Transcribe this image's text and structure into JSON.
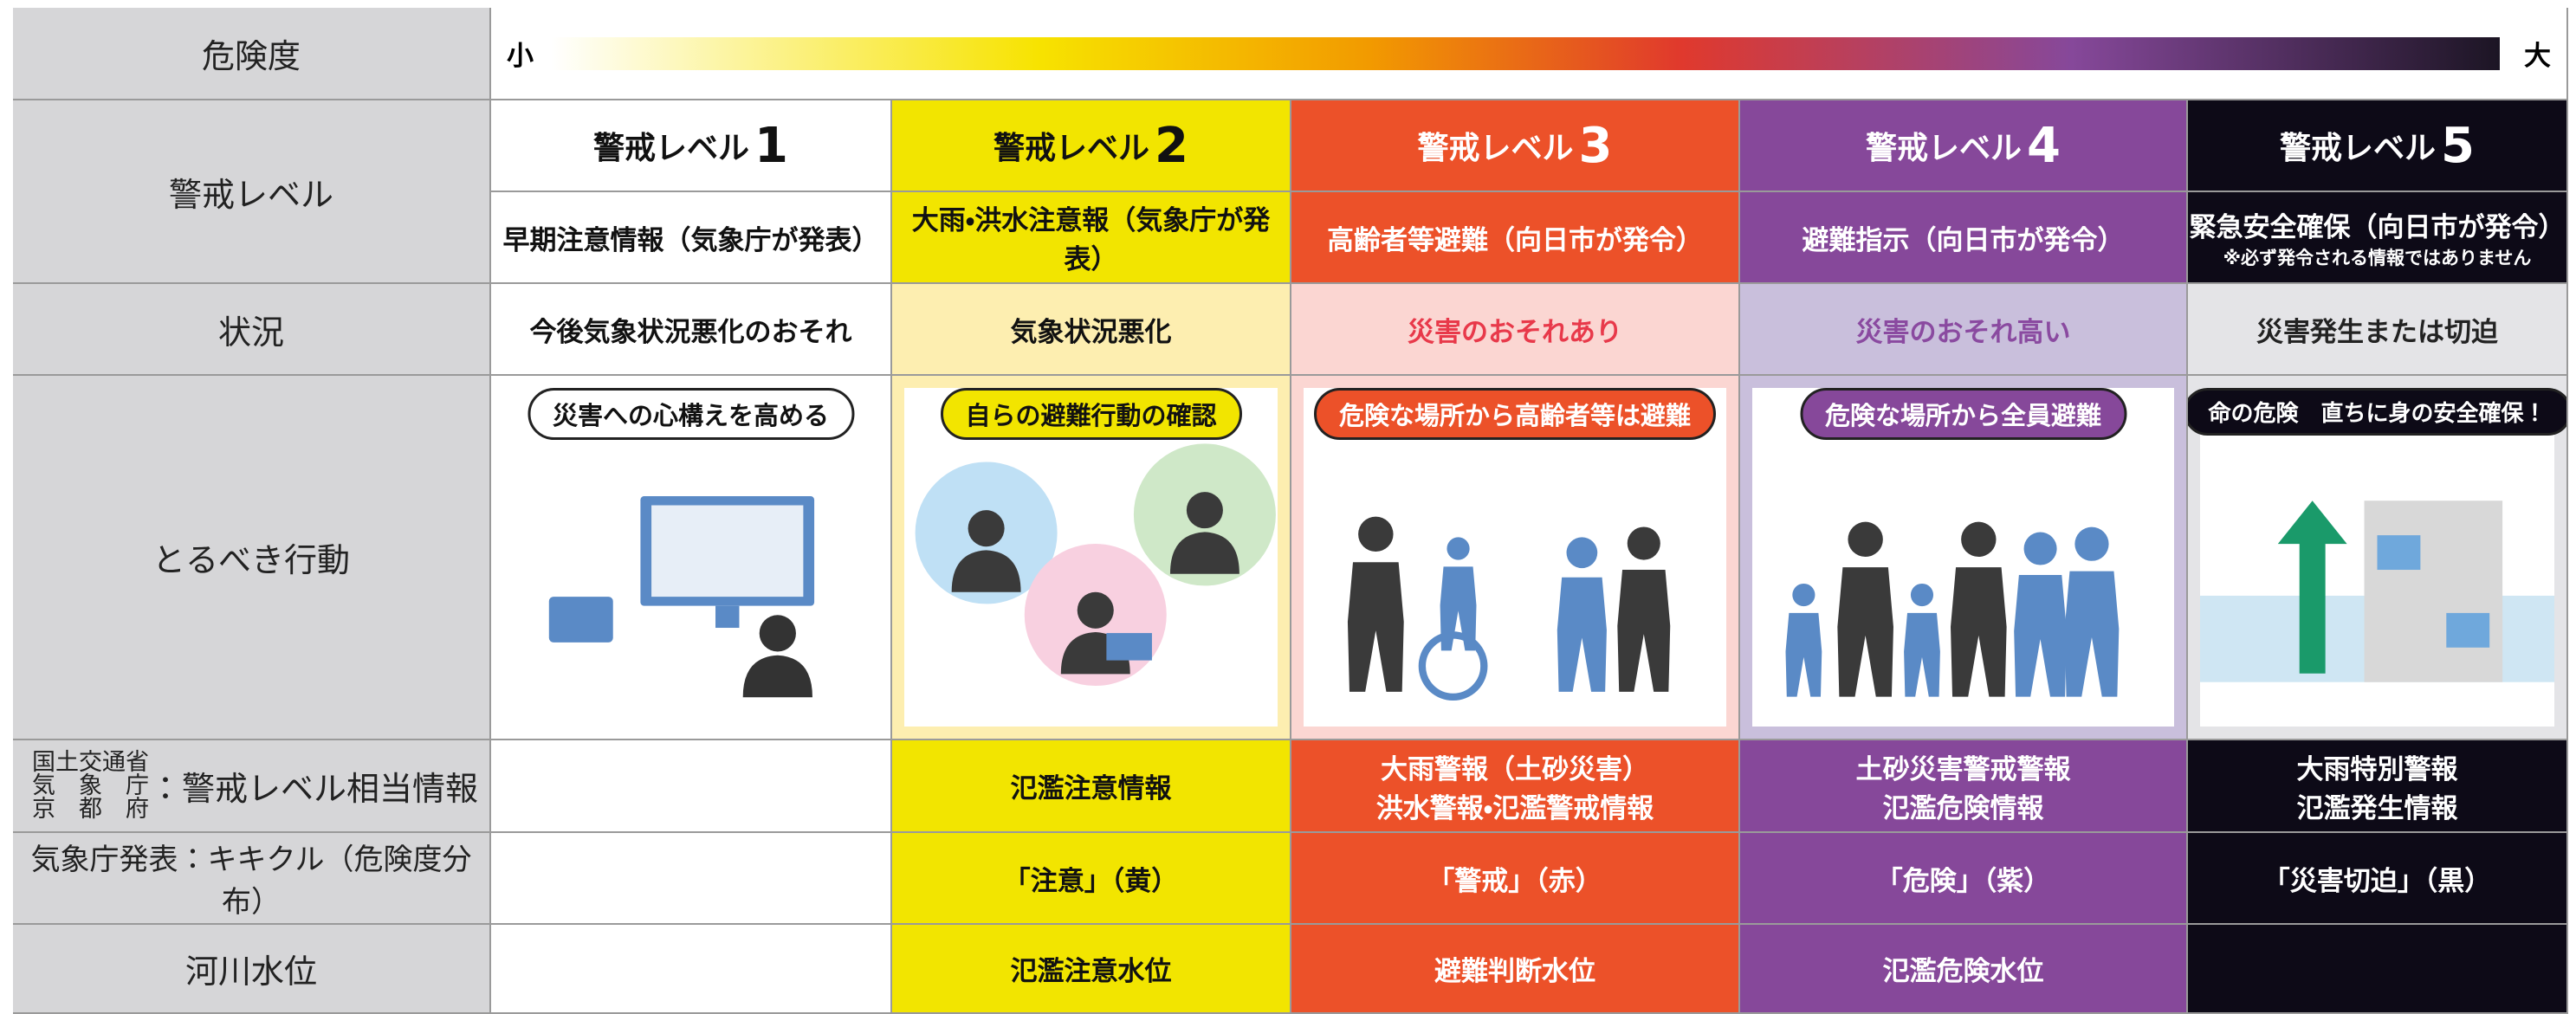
{
  "danger": {
    "label": "危険度",
    "low": "小",
    "high": "大"
  },
  "row_labels": {
    "level": "警戒レベル",
    "status": "状況",
    "action": "とるべき行動",
    "info": {
      "agencies": [
        "国土交通省",
        "気　象　庁",
        "京　都　府"
      ],
      "suffix": "：警戒レベル相当情報"
    },
    "kikikuru": "気象庁発表：キキクル（危険度分布）",
    "river": "河川水位"
  },
  "levels": [
    {
      "title": "警戒レベル",
      "number": "1",
      "subtitle": "早期注意情報（気象庁が発表）",
      "status": "今後気象状況悪化のおそれ",
      "action": "災害への心構えを高める"
    },
    {
      "title": "警戒レベル",
      "number": "2",
      "subtitle": "大雨・洪水注意報（気象庁が発表）",
      "status": "気象状況悪化",
      "action": "自らの避難行動の確認",
      "info": [
        "氾濫注意情報"
      ],
      "kikikuru": "「注意」（黄）",
      "river": "氾濫注意水位"
    },
    {
      "title": "警戒レベル",
      "number": "3",
      "subtitle": "高齢者等避難（向日市が発令）",
      "status": "災害のおそれあり",
      "action": "危険な場所から高齢者等は避難",
      "info": [
        "大雨警報（土砂災害）",
        "洪水警報・氾濫警戒情報"
      ],
      "kikikuru": "「警戒」（赤）",
      "river": "避難判断水位"
    },
    {
      "title": "警戒レベル",
      "number": "4",
      "subtitle": "避難指示（向日市が発令）",
      "status": "災害のおそれ高い",
      "action": "危険な場所から全員避難",
      "info": [
        "土砂災害警戒警報",
        "氾濫危険情報"
      ],
      "kikikuru": "「危険」（紫）",
      "river": "氾濫危険水位"
    },
    {
      "title": "警戒レベル",
      "number": "5",
      "subtitle": "緊急安全確保（向日市が発令）",
      "note": "※必ず発令される情報ではありません",
      "status": "災害発生または切迫",
      "action": "命の危険　直ちに身の安全確保！",
      "info": [
        "大雨特別警報",
        "氾濫発生情報"
      ],
      "kikikuru": "「災害切迫」（黒）"
    }
  ]
}
